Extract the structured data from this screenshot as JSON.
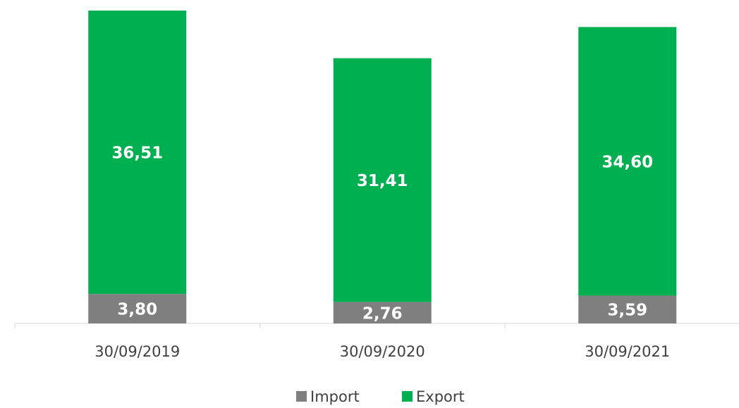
{
  "chart_data": {
    "type": "stacked_bar",
    "categories": [
      "30/09/2019",
      "30/09/2020",
      "30/09/2021"
    ],
    "series": [
      {
        "name": "Import",
        "color": "#7f7f7f",
        "values": [
          3.8,
          2.76,
          3.59
        ],
        "value_labels": [
          "3,80",
          "2,76",
          "3,59"
        ]
      },
      {
        "name": "Export",
        "color": "#00b050",
        "values": [
          36.51,
          31.41,
          34.6
        ],
        "value_labels": [
          "36,51",
          "31,41",
          "34,60"
        ]
      }
    ],
    "legend": "bottom"
  }
}
